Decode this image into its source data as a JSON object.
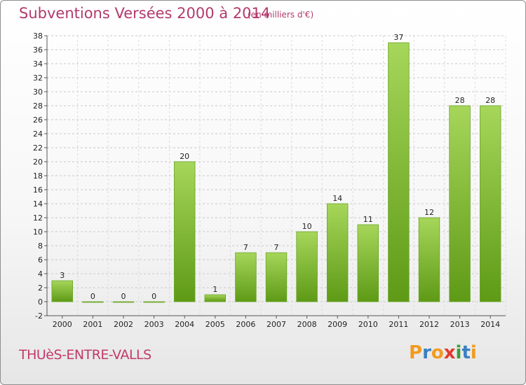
{
  "header": {
    "title": "Subventions Versées 2000 à 2014",
    "subtitle": "(en milliers d'€)"
  },
  "footer": {
    "commune": "THUèS-ENTRE-VALLS",
    "logo_letters": [
      "P",
      "r",
      "o",
      "x",
      "i",
      "t",
      "i"
    ],
    "logo_colors": [
      "#f39a1e",
      "#3a7fc4",
      "#f39a1e",
      "#e23a2a",
      "#3a9e3a",
      "#3a7fc4",
      "#f39a1e"
    ]
  },
  "chart_data": {
    "type": "bar",
    "title": "Subventions Versées 2000 à 2014",
    "subtitle": "(en milliers d'€)",
    "categories": [
      "2000",
      "2001",
      "2002",
      "2003",
      "2004",
      "2005",
      "2006",
      "2007",
      "2008",
      "2009",
      "2010",
      "2011",
      "2012",
      "2013",
      "2014"
    ],
    "values": [
      3,
      0,
      0,
      0,
      20,
      1,
      7,
      7,
      10,
      14,
      11,
      37,
      12,
      28,
      28
    ],
    "value_labels": [
      "3",
      "0",
      "0",
      "0",
      "20",
      "1",
      "7",
      "7",
      "10",
      "14",
      "11",
      "37",
      "12",
      "28",
      "28"
    ],
    "ylim": [
      -2,
      38
    ],
    "yticks": [
      "-2",
      "0",
      "2",
      "4",
      "6",
      "8",
      "10",
      "12",
      "14",
      "16",
      "18",
      "20",
      "22",
      "24",
      "26",
      "28",
      "30",
      "32",
      "34",
      "36",
      "38"
    ],
    "grid": "horizontal dashed",
    "bar_color": "#7dbb35"
  }
}
